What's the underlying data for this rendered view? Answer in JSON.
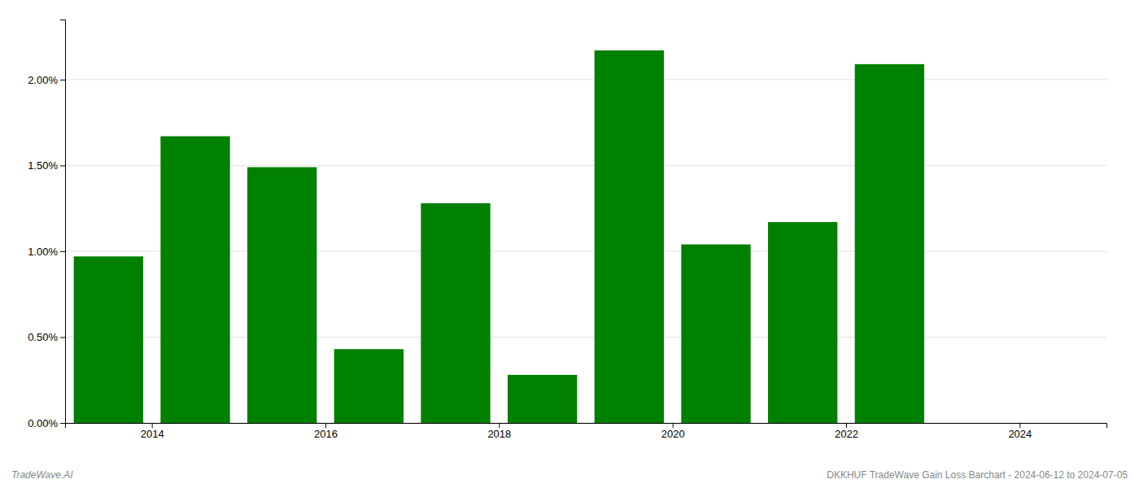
{
  "chart_data": {
    "type": "bar",
    "x": [
      2013.5,
      2014.5,
      2015.5,
      2016.5,
      2017.5,
      2018.5,
      2019.5,
      2020.5,
      2021.5,
      2022.5
    ],
    "values": [
      0.0097,
      0.0167,
      0.0149,
      0.0043,
      0.0128,
      0.0028,
      0.0217,
      0.0104,
      0.0117,
      0.0209
    ],
    "color": "#008000",
    "xlim": [
      2013.0,
      2025.0
    ],
    "xticks": [
      2014,
      2016,
      2018,
      2020,
      2022,
      2024
    ],
    "ylim": [
      0,
      0.0235
    ],
    "yticks": [
      {
        "value": 0.0,
        "label": "0.00%"
      },
      {
        "value": 0.005,
        "label": "0.50%"
      },
      {
        "value": 0.01,
        "label": "1.00%"
      },
      {
        "value": 0.015,
        "label": "1.50%"
      },
      {
        "value": 0.02,
        "label": "2.00%"
      }
    ],
    "grid": true,
    "annotations": [
      "TradeWave.AI",
      "DKKHUF TradeWave Gain Loss Barchart - 2024-06-12 to 2024-07-05"
    ]
  }
}
